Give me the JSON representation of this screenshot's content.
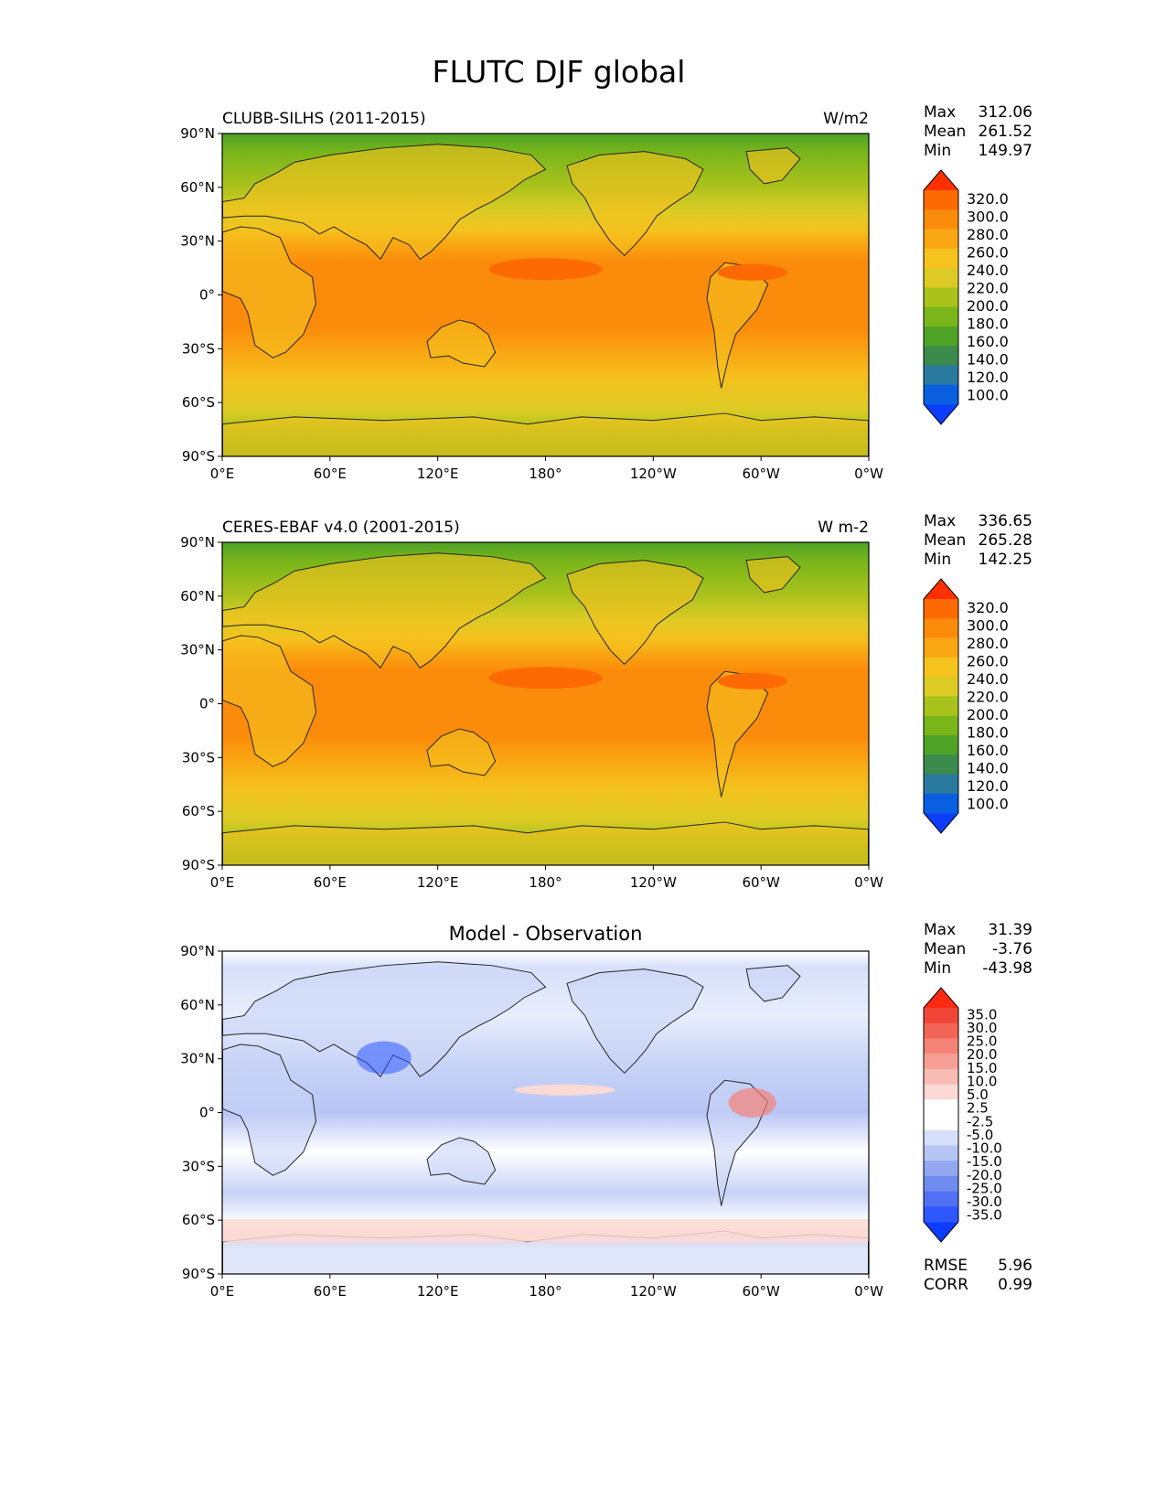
{
  "title": "FLUTC DJF global",
  "lat_ticks": [
    "90°N",
    "60°N",
    "30°N",
    "0°",
    "30°S",
    "60°S",
    "90°S"
  ],
  "lon_ticks": [
    "0°E",
    "60°E",
    "120°E",
    "180°",
    "120°W",
    "60°W",
    "0°W"
  ],
  "stat_labels": {
    "max": "Max",
    "mean": "Mean",
    "min": "Min"
  },
  "colors": {
    "abs_levels": [
      "#0a3dff",
      "#0a5ee0",
      "#2a7aa0",
      "#3d8a4d",
      "#4fa327",
      "#7ab51a",
      "#a9c21c",
      "#dccb25",
      "#f5c21e",
      "#f9a713",
      "#fb8b0a",
      "#fd6a04",
      "#ff2f00"
    ],
    "diff_levels": [
      "#0b3cff",
      "#2e57ff",
      "#4f71f2",
      "#718cf0",
      "#94a8f2",
      "#b7c5f5",
      "#d6e0fa",
      "#ffffff",
      "#ffffff",
      "#fbd9d4",
      "#f9bcb4",
      "#f79f94",
      "#f58276",
      "#f26556",
      "#ef4637",
      "#ff2a12"
    ],
    "ocean_abs": "#fb8b0a"
  },
  "panels": [
    {
      "id": "model",
      "left_title": "CLUBB-SILHS (2011-2015)",
      "center_title": "",
      "right_title": "W/m2",
      "stats": {
        "max": "312.06",
        "mean": "261.52",
        "min": "149.97"
      },
      "colorbar_type": "abs",
      "colorbar_labels": [
        "320.0",
        "300.0",
        "280.0",
        "260.0",
        "240.0",
        "220.0",
        "200.0",
        "180.0",
        "160.0",
        "140.0",
        "120.0",
        "100.0"
      ]
    },
    {
      "id": "obs",
      "left_title": "CERES-EBAF v4.0 (2001-2015)",
      "center_title": "",
      "right_title": "W m-2",
      "stats": {
        "max": "336.65",
        "mean": "265.28",
        "min": "142.25"
      },
      "colorbar_type": "abs",
      "colorbar_labels": [
        "320.0",
        "300.0",
        "280.0",
        "260.0",
        "240.0",
        "220.0",
        "200.0",
        "180.0",
        "160.0",
        "140.0",
        "120.0",
        "100.0"
      ]
    },
    {
      "id": "diff",
      "left_title": "",
      "center_title": "Model - Observation",
      "right_title": "",
      "stats": {
        "max": "31.39",
        "mean": "-3.76",
        "min": "-43.98"
      },
      "colorbar_type": "diff",
      "colorbar_labels": [
        "35.0",
        "30.0",
        "25.0",
        "20.0",
        "15.0",
        "10.0",
        "5.0",
        "2.5",
        "-2.5",
        "-5.0",
        "-10.0",
        "-15.0",
        "-20.0",
        "-25.0",
        "-30.0",
        "-35.0"
      ],
      "extra_stats": [
        {
          "label": "RMSE",
          "value": "5.96"
        },
        {
          "label": "CORR",
          "value": "0.99"
        }
      ]
    }
  ]
}
